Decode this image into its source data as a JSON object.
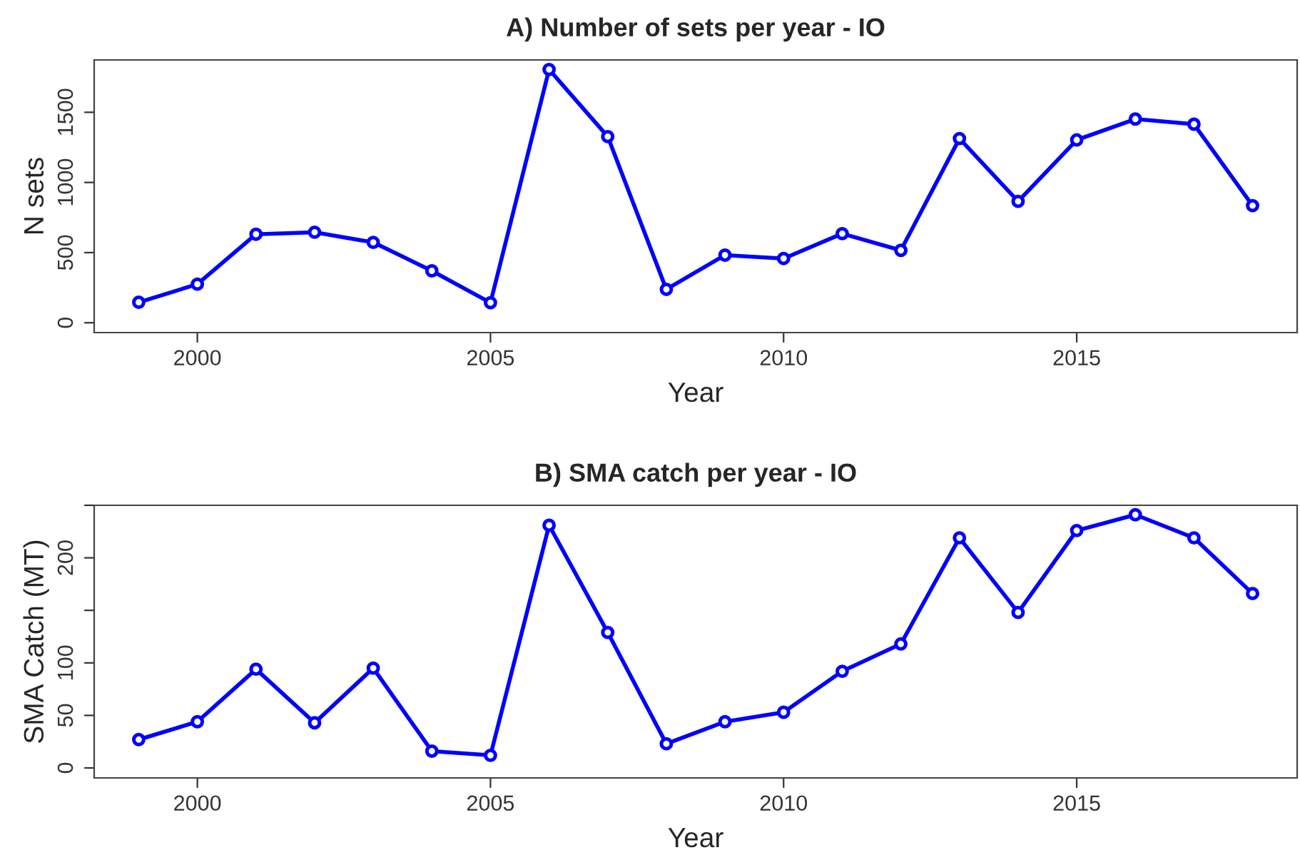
{
  "chart_data": [
    {
      "type": "line",
      "title": "A) Number of sets per year - IO",
      "xlabel": "Year",
      "ylabel": "N sets",
      "x": [
        1999,
        2000,
        2001,
        2002,
        2003,
        2004,
        2005,
        2006,
        2007,
        2008,
        2009,
        2010,
        2011,
        2012,
        2013,
        2014,
        2015,
        2016,
        2017,
        2018
      ],
      "series": [
        {
          "color": "#0000ff",
          "values": [
            146,
            275,
            631,
            645,
            573,
            370,
            143,
            1805,
            1327,
            238,
            482,
            458,
            635,
            516,
            1313,
            865,
            1303,
            1452,
            1415,
            835
          ]
        }
      ],
      "xlim": [
        1998.24,
        2018.76
      ],
      "ylim": [
        -70,
        1873
      ],
      "xticks": [
        2000,
        2005,
        2010,
        2015
      ],
      "yticks": [
        0,
        500,
        1000,
        1500
      ],
      "marker": "circle",
      "line_style": "solid",
      "grid": false,
      "legend": false
    },
    {
      "type": "line",
      "title": "B) SMA catch per year - IO",
      "xlabel": "Year",
      "ylabel": "SMA Catch (MT)",
      "x": [
        1999,
        2000,
        2001,
        2002,
        2003,
        2004,
        2005,
        2006,
        2007,
        2008,
        2009,
        2010,
        2011,
        2012,
        2013,
        2014,
        2015,
        2016,
        2017,
        2018
      ],
      "series": [
        {
          "color": "#0000ff",
          "values": [
            27,
            44,
            94,
            43,
            95,
            16,
            12,
            231,
            129,
            23,
            44,
            53,
            92,
            118,
            219,
            148,
            226,
            241,
            219,
            166
          ]
        }
      ],
      "xlim": [
        1998.24,
        2018.76
      ],
      "ylim": [
        -9.5,
        250
      ],
      "xticks": [
        2000,
        2005,
        2010,
        2015
      ],
      "yticks": [
        0,
        50,
        100,
        {
          "value": 150,
          "label": null
        },
        200,
        {
          "value": 250,
          "label": null
        }
      ],
      "marker": "circle",
      "line_style": "solid",
      "grid": false,
      "legend": false
    }
  ]
}
